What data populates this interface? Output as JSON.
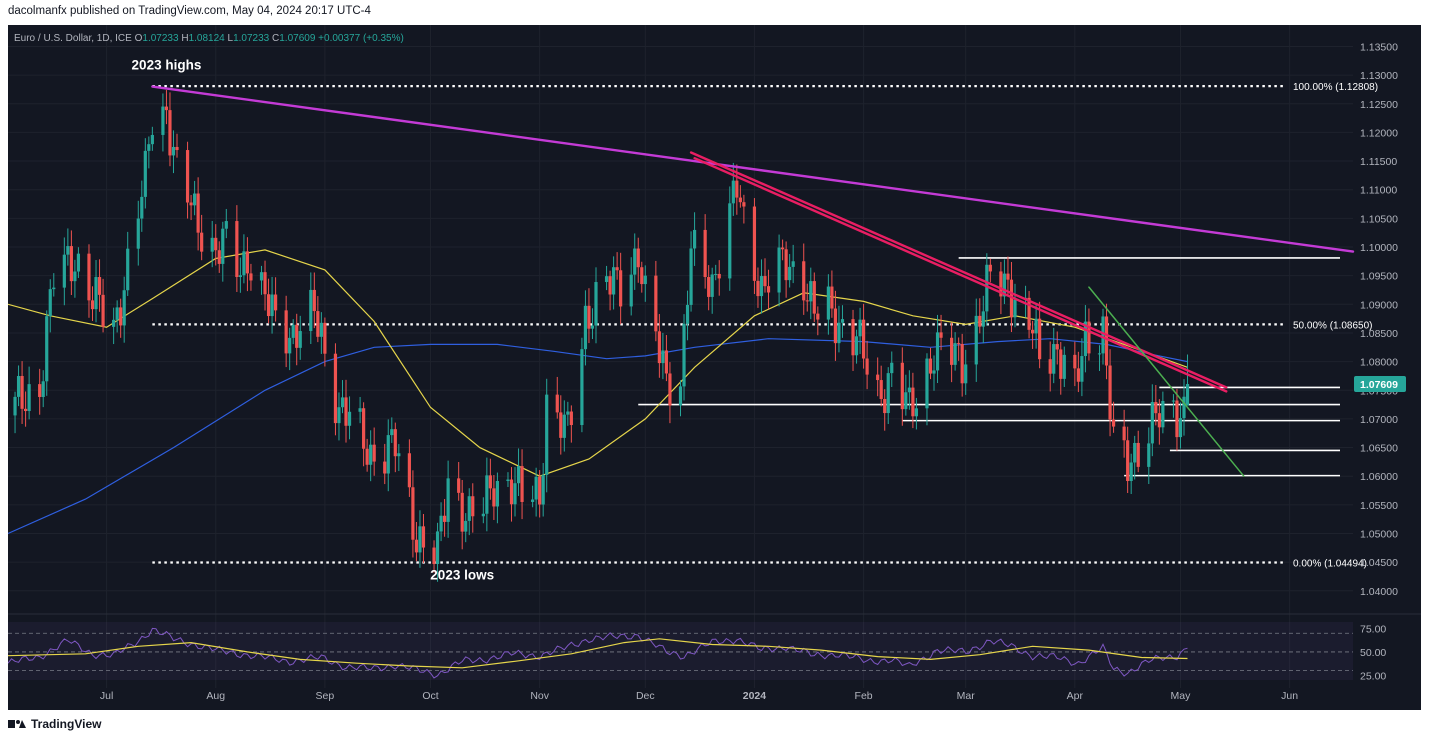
{
  "publisher_line": "dacolmanfx published on TradingView.com, May 04, 2024 20:17 UTC-4",
  "footer": {
    "brand": "TradingView"
  },
  "colors": {
    "background": "#131722",
    "up": "#26a69a",
    "down": "#ef5350",
    "grid": "#1e222d",
    "text": "#b2b5be",
    "sma_fast": "#e5d54b",
    "sma_slow": "#2f5fe0",
    "long_trend": "#c43bd6",
    "short_trend": "#e91e63",
    "green_trend": "#4caf50",
    "rsi": "#7e57c2",
    "rsi_ma": "#e5d54b",
    "white": "#ffffff"
  },
  "chart_data": {
    "type": "candlestick",
    "symbol": "Euro / U.S. Dollar, 1D, ICE",
    "ohlc_header": {
      "o_label": "O",
      "o": "1.07233",
      "h_label": "H",
      "h": "1.08124",
      "l_label": "L",
      "l": "1.07233",
      "c_label": "C",
      "c": "1.07609",
      "change": "+0.00377 (+0.35%)"
    },
    "price_axis": {
      "ylim": [
        1.037,
        1.137
      ],
      "ticks": [
        "1.13500",
        "1.13000",
        "1.12500",
        "1.12000",
        "1.11500",
        "1.11000",
        "1.10500",
        "1.10000",
        "1.09500",
        "1.09000",
        "1.08500",
        "1.08000",
        "1.07500",
        "1.07000",
        "1.06500",
        "1.06000",
        "1.05500",
        "1.05000",
        "1.04500",
        "1.04000"
      ]
    },
    "time_axis": {
      "start_date": "2023-06-03",
      "end_date": "2024-06-19",
      "labels": [
        {
          "date": "2023-07-01",
          "label": "Jul",
          "bold": false
        },
        {
          "date": "2023-08-01",
          "label": "Aug",
          "bold": false
        },
        {
          "date": "2023-09-01",
          "label": "Sep",
          "bold": false
        },
        {
          "date": "2023-10-01",
          "label": "Oct",
          "bold": false
        },
        {
          "date": "2023-11-01",
          "label": "Nov",
          "bold": false
        },
        {
          "date": "2023-12-01",
          "label": "Dec",
          "bold": false
        },
        {
          "date": "2024-01-01",
          "label": "2024",
          "bold": true
        },
        {
          "date": "2024-02-01",
          "label": "Feb",
          "bold": false
        },
        {
          "date": "2024-03-01",
          "label": "Mar",
          "bold": false
        },
        {
          "date": "2024-04-01",
          "label": "Apr",
          "bold": false
        },
        {
          "date": "2024-05-01",
          "label": "May",
          "bold": false
        },
        {
          "date": "2024-06-01",
          "label": "Jun",
          "bold": false
        }
      ]
    },
    "price_path": [
      [
        "2023-06-03",
        1.071
      ],
      [
        "2023-06-12",
        1.076
      ],
      [
        "2023-06-16",
        1.0945
      ],
      [
        "2023-06-22",
        1.0985
      ],
      [
        "2023-06-27",
        1.091
      ],
      [
        "2023-07-03",
        1.086
      ],
      [
        "2023-07-07",
        1.0965
      ],
      [
        "2023-07-12",
        1.112
      ],
      [
        "2023-07-14",
        1.1235
      ],
      [
        "2023-07-18",
        1.124
      ],
      [
        "2023-07-21",
        1.1125
      ],
      [
        "2023-07-26",
        1.106
      ],
      [
        "2023-08-01",
        1.099
      ],
      [
        "2023-08-04",
        1.1005
      ],
      [
        "2023-08-08",
        1.096
      ],
      [
        "2023-08-10",
        1.099
      ],
      [
        "2023-08-15",
        1.0905
      ],
      [
        "2023-08-18",
        1.087
      ],
      [
        "2023-08-23",
        1.085
      ],
      [
        "2023-08-29",
        1.088
      ],
      [
        "2023-08-31",
        1.0843
      ],
      [
        "2023-09-05",
        1.072
      ],
      [
        "2023-09-08",
        1.07
      ],
      [
        "2023-09-14",
        1.064
      ],
      [
        "2023-09-21",
        1.065
      ],
      [
        "2023-09-27",
        1.05
      ],
      [
        "2023-10-03",
        1.046
      ],
      [
        "2023-10-06",
        1.059
      ],
      [
        "2023-10-12",
        1.053
      ],
      [
        "2023-10-16",
        1.054
      ],
      [
        "2023-10-19",
        1.059
      ],
      [
        "2023-10-24",
        1.059
      ],
      [
        "2023-10-27",
        1.056
      ],
      [
        "2023-11-01",
        1.057
      ],
      [
        "2023-11-03",
        1.073
      ],
      [
        "2023-11-09",
        1.067
      ],
      [
        "2023-11-14",
        1.088
      ],
      [
        "2023-11-20",
        1.093
      ],
      [
        "2023-11-24",
        1.094
      ],
      [
        "2023-11-29",
        1.099
      ],
      [
        "2023-12-01",
        1.09
      ],
      [
        "2023-12-07",
        1.078
      ],
      [
        "2023-12-11",
        1.076
      ],
      [
        "2023-12-14",
        1.099
      ],
      [
        "2023-12-20",
        1.094
      ],
      [
        "2023-12-27",
        1.11
      ],
      [
        "2023-12-29",
        1.104
      ],
      [
        "2024-01-03",
        1.093
      ],
      [
        "2024-01-10",
        1.097
      ],
      [
        "2024-01-15",
        1.095
      ],
      [
        "2024-01-18",
        1.088
      ],
      [
        "2024-01-22",
        1.089
      ],
      [
        "2024-01-30",
        1.084
      ],
      [
        "2024-02-05",
        1.074
      ],
      [
        "2024-02-09",
        1.078
      ],
      [
        "2024-02-14",
        1.071
      ],
      [
        "2024-02-21",
        1.082
      ],
      [
        "2024-02-29",
        1.0805
      ],
      [
        "2024-03-04",
        1.086
      ],
      [
        "2024-03-08",
        1.094
      ],
      [
        "2024-03-13",
        1.094
      ],
      [
        "2024-03-19",
        1.0865
      ],
      [
        "2024-03-22",
        1.081
      ],
      [
        "2024-03-27",
        1.0825
      ],
      [
        "2024-04-01",
        1.0745
      ],
      [
        "2024-04-04",
        1.084
      ],
      [
        "2024-04-09",
        1.086
      ],
      [
        "2024-04-12",
        1.065
      ],
      [
        "2024-04-16",
        1.062
      ],
      [
        "2024-04-19",
        1.0655
      ],
      [
        "2024-04-24",
        1.07
      ],
      [
        "2024-04-26",
        1.0695
      ],
      [
        "2024-04-29",
        1.072
      ],
      [
        "2024-05-01",
        1.071
      ],
      [
        "2024-05-02",
        1.0725
      ],
      [
        "2024-05-03",
        1.0761
      ]
    ],
    "sma_50": [
      [
        "2023-06-03",
        1.09
      ],
      [
        "2023-06-15",
        1.088
      ],
      [
        "2023-07-01",
        1.086
      ],
      [
        "2023-07-14",
        1.091
      ],
      [
        "2023-08-01",
        1.098
      ],
      [
        "2023-08-15",
        1.0995
      ],
      [
        "2023-09-01",
        1.096
      ],
      [
        "2023-09-15",
        1.087
      ],
      [
        "2023-10-01",
        1.072
      ],
      [
        "2023-10-15",
        1.065
      ],
      [
        "2023-11-01",
        1.06
      ],
      [
        "2023-11-15",
        1.063
      ],
      [
        "2023-12-01",
        1.07
      ],
      [
        "2023-12-15",
        1.079
      ],
      [
        "2024-01-01",
        1.088
      ],
      [
        "2024-01-15",
        1.092
      ],
      [
        "2024-02-01",
        1.0905
      ],
      [
        "2024-02-15",
        1.088
      ],
      [
        "2024-03-01",
        1.0865
      ],
      [
        "2024-03-15",
        1.088
      ],
      [
        "2024-04-01",
        1.086
      ],
      [
        "2024-04-15",
        1.083
      ],
      [
        "2024-05-03",
        1.079
      ]
    ],
    "sma_200": [
      [
        "2023-06-03",
        1.05
      ],
      [
        "2023-06-25",
        1.056
      ],
      [
        "2023-07-20",
        1.065
      ],
      [
        "2023-08-15",
        1.075
      ],
      [
        "2023-09-01",
        1.08
      ],
      [
        "2023-09-15",
        1.0825
      ],
      [
        "2023-10-01",
        1.083
      ],
      [
        "2023-10-20",
        1.083
      ],
      [
        "2023-11-05",
        1.0818
      ],
      [
        "2023-11-20",
        1.0805
      ],
      [
        "2023-12-01",
        1.081
      ],
      [
        "2023-12-15",
        1.0825
      ],
      [
        "2024-01-05",
        1.084
      ],
      [
        "2024-02-01",
        1.0835
      ],
      [
        "2024-02-20",
        1.0825
      ],
      [
        "2024-03-10",
        1.0835
      ],
      [
        "2024-03-25",
        1.084
      ],
      [
        "2024-04-10",
        1.083
      ],
      [
        "2024-04-25",
        1.081
      ],
      [
        "2024-05-03",
        1.08
      ]
    ],
    "trendlines": [
      {
        "name": "long-downtrend",
        "p1": [
          "2023-07-14",
          1.128
        ],
        "p2": [
          "2024-06-19",
          1.0992
        ]
      },
      {
        "name": "short-downtrend-upper",
        "p1": [
          "2023-12-14",
          1.1165
        ],
        "p2": [
          "2024-05-14",
          1.0755
        ]
      },
      {
        "name": "short-downtrend-lower",
        "p1": [
          "2023-12-15",
          1.1155
        ],
        "p2": [
          "2024-05-14",
          1.0748
        ]
      },
      {
        "name": "green-downtrend",
        "p1": [
          "2024-04-05",
          1.093
        ],
        "p2": [
          "2024-05-19",
          1.06
        ]
      }
    ],
    "horizontal_levels": [
      {
        "start": "2024-02-28",
        "end": "2024-06-19",
        "price": 1.0981
      },
      {
        "start": "2024-04-25",
        "end": "2024-06-19",
        "price": 1.0755
      },
      {
        "start": "2023-11-29",
        "end": "2024-06-19",
        "price": 1.0725
      },
      {
        "start": "2024-02-12",
        "end": "2024-06-19",
        "price": 1.0697
      },
      {
        "start": "2024-04-28",
        "end": "2024-06-19",
        "price": 1.0645
      },
      {
        "start": "2024-04-15",
        "end": "2024-06-19",
        "price": 1.0601
      }
    ],
    "fibonacci": [
      {
        "label": "100.00% (1.12808)",
        "price": 1.12808,
        "start": "2023-07-14"
      },
      {
        "label": "50.00% (1.08650)",
        "price": 1.0865,
        "start": "2023-07-14"
      },
      {
        "label": "0.00% (1.04494)",
        "price": 1.04494,
        "start": "2023-07-14"
      }
    ],
    "annotations": [
      {
        "text": "2023 highs",
        "date": "2023-07-18",
        "price": 1.131
      },
      {
        "text": "2023 lows",
        "date": "2023-10-10",
        "price": 1.042
      }
    ],
    "last_price_label": "1.07609",
    "last_price": 1.07609,
    "rsi": {
      "ylim": [
        20,
        82
      ],
      "ticks": [
        "75.00",
        "50.00",
        "25.00"
      ],
      "band_upper": 70,
      "band_mid": 50,
      "band_lower": 30,
      "values": [
        [
          "2023-06-03",
          38
        ],
        [
          "2023-06-12",
          45
        ],
        [
          "2023-06-20",
          62
        ],
        [
          "2023-06-27",
          48
        ],
        [
          "2023-07-03",
          46
        ],
        [
          "2023-07-10",
          62
        ],
        [
          "2023-07-14",
          74
        ],
        [
          "2023-07-20",
          64
        ],
        [
          "2023-07-26",
          58
        ],
        [
          "2023-08-01",
          52
        ],
        [
          "2023-08-08",
          48
        ],
        [
          "2023-08-15",
          44
        ],
        [
          "2023-08-22",
          40
        ],
        [
          "2023-08-31",
          44
        ],
        [
          "2023-09-07",
          34
        ],
        [
          "2023-09-14",
          32
        ],
        [
          "2023-09-21",
          36
        ],
        [
          "2023-09-28",
          30
        ],
        [
          "2023-10-03",
          26
        ],
        [
          "2023-10-10",
          40
        ],
        [
          "2023-10-16",
          42
        ],
        [
          "2023-10-24",
          48
        ],
        [
          "2023-11-01",
          46
        ],
        [
          "2023-11-08",
          54
        ],
        [
          "2023-11-15",
          64
        ],
        [
          "2023-11-22",
          66
        ],
        [
          "2023-11-29",
          68
        ],
        [
          "2023-12-07",
          50
        ],
        [
          "2023-12-12",
          46
        ],
        [
          "2023-12-20",
          60
        ],
        [
          "2023-12-27",
          64
        ],
        [
          "2024-01-03",
          52
        ],
        [
          "2024-01-10",
          56
        ],
        [
          "2024-01-18",
          46
        ],
        [
          "2024-01-25",
          48
        ],
        [
          "2024-02-02",
          40
        ],
        [
          "2024-02-09",
          42
        ],
        [
          "2024-02-14",
          34
        ],
        [
          "2024-02-22",
          52
        ],
        [
          "2024-03-01",
          50
        ],
        [
          "2024-03-08",
          62
        ],
        [
          "2024-03-14",
          56
        ],
        [
          "2024-03-20",
          46
        ],
        [
          "2024-03-27",
          44
        ],
        [
          "2024-04-02",
          38
        ],
        [
          "2024-04-09",
          54
        ],
        [
          "2024-04-12",
          32
        ],
        [
          "2024-04-16",
          28
        ],
        [
          "2024-04-22",
          40
        ],
        [
          "2024-04-26",
          44
        ],
        [
          "2024-04-30",
          46
        ],
        [
          "2024-05-03",
          54
        ]
      ],
      "ma": [
        [
          "2023-06-03",
          46
        ],
        [
          "2023-06-25",
          48
        ],
        [
          "2023-07-10",
          56
        ],
        [
          "2023-07-25",
          60
        ],
        [
          "2023-08-10",
          50
        ],
        [
          "2023-08-25",
          42
        ],
        [
          "2023-09-10",
          38
        ],
        [
          "2023-09-25",
          35
        ],
        [
          "2023-10-10",
          33
        ],
        [
          "2023-10-25",
          40
        ],
        [
          "2023-11-10",
          48
        ],
        [
          "2023-11-25",
          60
        ],
        [
          "2023-12-05",
          64
        ],
        [
          "2023-12-20",
          58
        ],
        [
          "2024-01-05",
          56
        ],
        [
          "2024-01-20",
          52
        ],
        [
          "2024-02-05",
          45
        ],
        [
          "2024-02-20",
          42
        ],
        [
          "2024-03-05",
          47
        ],
        [
          "2024-03-20",
          56
        ],
        [
          "2024-04-05",
          52
        ],
        [
          "2024-04-20",
          44
        ],
        [
          "2024-05-03",
          43
        ]
      ]
    }
  }
}
